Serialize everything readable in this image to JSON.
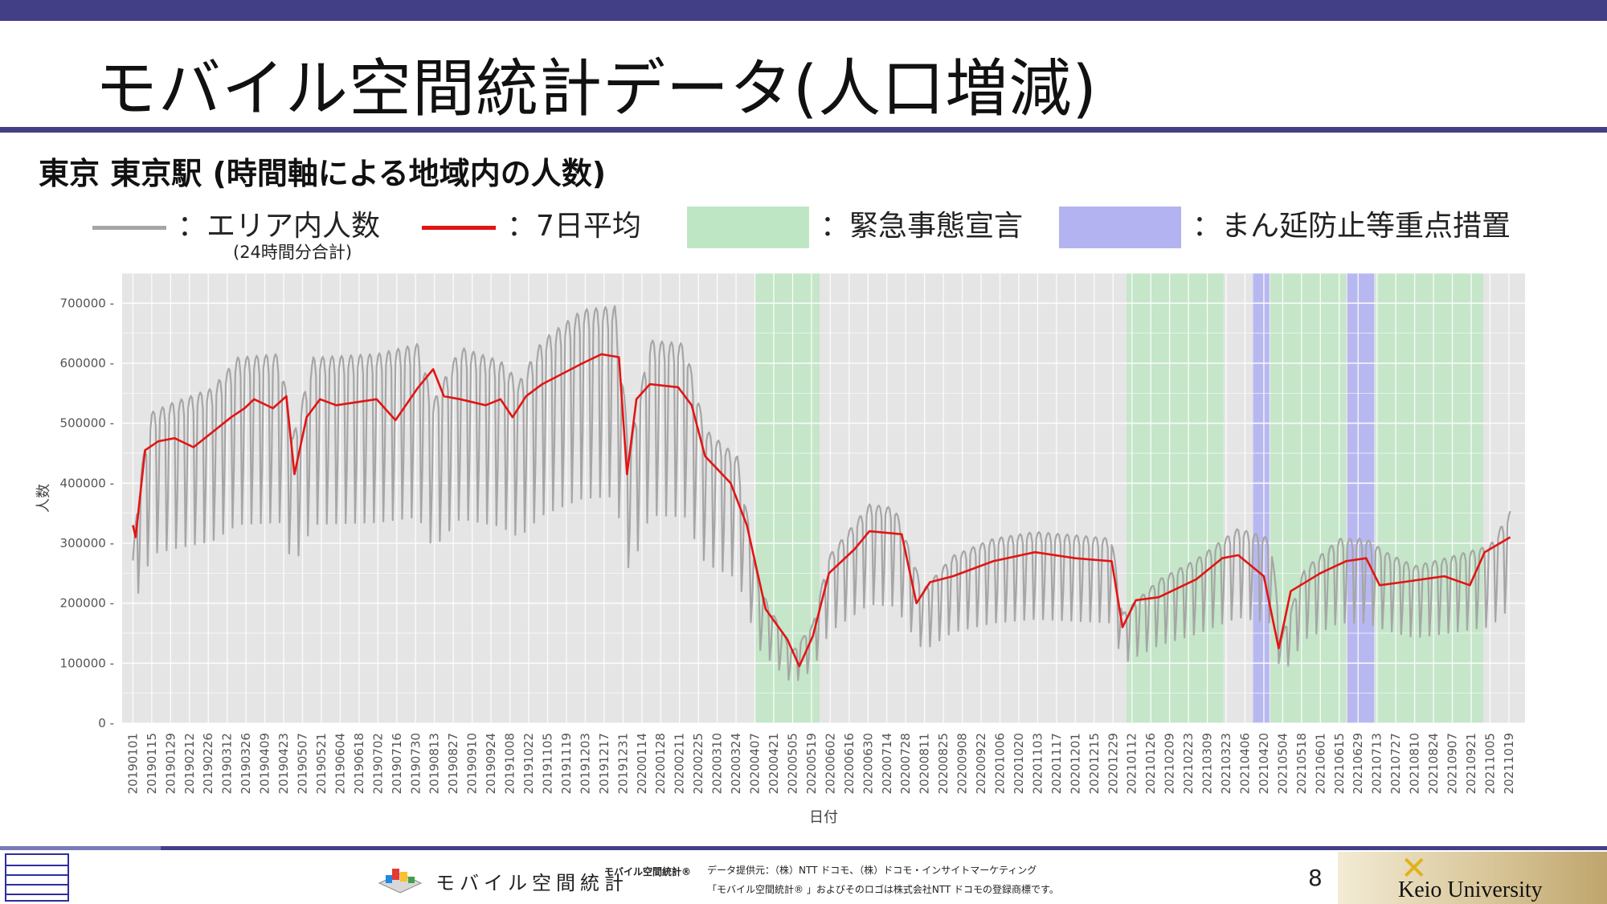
{
  "slide": {
    "title": "モバイル空間統計データ(人口増減)",
    "subtitle": "東京 東京駅 (時間軸による地域内の人数)",
    "page_number": "8"
  },
  "legend": {
    "area_label": "：エリア内人数",
    "area_sub": "(24時間分合計)",
    "avg_label": "：7日平均",
    "emergency_label": "：緊急事態宣言",
    "priority_label": "：まん延防止等重点措置"
  },
  "colors": {
    "header": "#433f86",
    "raw_series": "#a6a6a6",
    "avg_series": "#e31414",
    "emergency": "#bfe6c4",
    "priority": "#b3b3f2",
    "plot_bg": "#e5e5e5"
  },
  "footer": {
    "brand_text": "モバイル空間統計",
    "brand_tm": "モバイル空間統計®",
    "provider": "データ提供元：（株）NTT ドコモ、（株）ドコモ・インサイトマーケティング",
    "trademark": "「モバイル空間統計® 」およびそのロゴは株式会社NTT ドコモの登録商標です。",
    "university": "Keio University"
  },
  "chart_data": {
    "type": "line",
    "xlabel": "日付",
    "ylabel": "人数",
    "ylim": [
      0,
      750000
    ],
    "y_ticks": [
      "0",
      "100000",
      "200000",
      "300000",
      "400000",
      "500000",
      "600000",
      "700000"
    ],
    "x_ticks": [
      "20190101",
      "20190115",
      "20190129",
      "20190212",
      "20190226",
      "20190312",
      "20190326",
      "20190409",
      "20190423",
      "20190507",
      "20190521",
      "20190604",
      "20190618",
      "20190702",
      "20190716",
      "20190730",
      "20190813",
      "20190827",
      "20190910",
      "20190924",
      "20191008",
      "20191022",
      "20191105",
      "20191119",
      "20191203",
      "20191217",
      "20191231",
      "20200114",
      "20200128",
      "20200211",
      "20200225",
      "20200310",
      "20200324",
      "20200407",
      "20200421",
      "20200505",
      "20200519",
      "20200602",
      "20200616",
      "20200630",
      "20200714",
      "20200728",
      "20200811",
      "20200825",
      "20200908",
      "20200922",
      "20201006",
      "20201020",
      "20201103",
      "20201117",
      "20201201",
      "20201215",
      "20201229",
      "20210112",
      "20210126",
      "20210209",
      "20210223",
      "20210309",
      "20210323",
      "20210406",
      "20210420",
      "20210504",
      "20210518",
      "20210601",
      "20210615",
      "20210629",
      "20210713",
      "20210727",
      "20210810",
      "20210824",
      "20210907",
      "20210921",
      "20211005",
      "20211019"
    ],
    "grid": true,
    "emergency_periods": [
      [
        "20200407",
        "20200525"
      ],
      [
        "20210108",
        "20210321"
      ],
      [
        "20210425",
        "20210620"
      ],
      [
        "20210712",
        "20210930"
      ]
    ],
    "priority_periods": [
      [
        "20210412",
        "20210424"
      ],
      [
        "20210621",
        "20210711"
      ]
    ],
    "series": [
      {
        "name": "エリア内人数",
        "style": "weekly-cycle",
        "weekday_profile": [
          0.8,
          1.1,
          1.13,
          1.14,
          1.13,
          1.08,
          0.62
        ],
        "level_points": [
          [
            "20190101",
            240000
          ],
          [
            "20190105",
            350000
          ],
          [
            "20190115",
            455000
          ],
          [
            "20190201",
            470000
          ],
          [
            "20190301",
            490000
          ],
          [
            "20190320",
            535000
          ],
          [
            "20190420",
            540000
          ],
          [
            "20190430",
            420000
          ],
          [
            "20190515",
            535000
          ],
          [
            "20190701",
            540000
          ],
          [
            "20190801",
            555000
          ],
          [
            "20190812",
            470000
          ],
          [
            "20190901",
            550000
          ],
          [
            "20191001",
            530000
          ],
          [
            "20191015",
            500000
          ],
          [
            "20191101",
            560000
          ],
          [
            "20191201",
            605000
          ],
          [
            "20191225",
            610000
          ],
          [
            "20200105",
            400000
          ],
          [
            "20200120",
            560000
          ],
          [
            "20200215",
            555000
          ],
          [
            "20200301",
            430000
          ],
          [
            "20200325",
            390000
          ],
          [
            "20200410",
            200000
          ],
          [
            "20200505",
            105000
          ],
          [
            "20200520",
            145000
          ],
          [
            "20200601",
            245000
          ],
          [
            "20200701",
            320000
          ],
          [
            "20200720",
            315000
          ],
          [
            "20200810",
            195000
          ],
          [
            "20200901",
            245000
          ],
          [
            "20201001",
            270000
          ],
          [
            "20201101",
            280000
          ],
          [
            "20201201",
            275000
          ],
          [
            "20201228",
            270000
          ],
          [
            "20210105",
            160000
          ],
          [
            "20210201",
            210000
          ],
          [
            "20210301",
            240000
          ],
          [
            "20210401",
            285000
          ],
          [
            "20210425",
            270000
          ],
          [
            "20210503",
            125000
          ],
          [
            "20210520",
            225000
          ],
          [
            "20210615",
            270000
          ],
          [
            "20210705",
            270000
          ],
          [
            "20210720",
            250000
          ],
          [
            "20210810",
            230000
          ],
          [
            "20210830",
            240000
          ],
          [
            "20211005",
            260000
          ],
          [
            "20211020",
            310000
          ]
        ]
      },
      {
        "name": "7日平均",
        "points": [
          [
            "20190101",
            330000
          ],
          [
            "20190103",
            310000
          ],
          [
            "20190110",
            455000
          ],
          [
            "20190120",
            470000
          ],
          [
            "20190201",
            475000
          ],
          [
            "20190215",
            460000
          ],
          [
            "20190301",
            485000
          ],
          [
            "20190315",
            510000
          ],
          [
            "20190325",
            525000
          ],
          [
            "20190401",
            540000
          ],
          [
            "20190415",
            525000
          ],
          [
            "20190425",
            545000
          ],
          [
            "20190501",
            415000
          ],
          [
            "20190510",
            510000
          ],
          [
            "20190520",
            540000
          ],
          [
            "20190601",
            530000
          ],
          [
            "20190701",
            540000
          ],
          [
            "20190715",
            505000
          ],
          [
            "20190801",
            560000
          ],
          [
            "20190812",
            590000
          ],
          [
            "20190820",
            545000
          ],
          [
            "20190901",
            540000
          ],
          [
            "20190920",
            530000
          ],
          [
            "20191001",
            540000
          ],
          [
            "20191010",
            510000
          ],
          [
            "20191020",
            545000
          ],
          [
            "20191101",
            565000
          ],
          [
            "20191201",
            600000
          ],
          [
            "20191215",
            615000
          ],
          [
            "20191228",
            610000
          ],
          [
            "20200103",
            415000
          ],
          [
            "20200110",
            540000
          ],
          [
            "20200120",
            565000
          ],
          [
            "20200210",
            560000
          ],
          [
            "20200220",
            530000
          ],
          [
            "20200301",
            445000
          ],
          [
            "20200320",
            400000
          ],
          [
            "20200401",
            330000
          ],
          [
            "20200415",
            190000
          ],
          [
            "20200501",
            140000
          ],
          [
            "20200510",
            95000
          ],
          [
            "20200520",
            145000
          ],
          [
            "20200601",
            250000
          ],
          [
            "20200620",
            290000
          ],
          [
            "20200701",
            320000
          ],
          [
            "20200725",
            315000
          ],
          [
            "20200805",
            200000
          ],
          [
            "20200815",
            235000
          ],
          [
            "20200901",
            245000
          ],
          [
            "20201001",
            270000
          ],
          [
            "20201101",
            285000
          ],
          [
            "20201201",
            275000
          ],
          [
            "20201228",
            270000
          ],
          [
            "20210105",
            160000
          ],
          [
            "20210115",
            205000
          ],
          [
            "20210201",
            210000
          ],
          [
            "20210301",
            240000
          ],
          [
            "20210320",
            275000
          ],
          [
            "20210401",
            280000
          ],
          [
            "20210420",
            245000
          ],
          [
            "20210501",
            125000
          ],
          [
            "20210510",
            220000
          ],
          [
            "20210601",
            250000
          ],
          [
            "20210620",
            270000
          ],
          [
            "20210705",
            275000
          ],
          [
            "20210715",
            230000
          ],
          [
            "20210801",
            235000
          ],
          [
            "20210901",
            245000
          ],
          [
            "20210920",
            230000
          ],
          [
            "20211001",
            285000
          ],
          [
            "20211020",
            310000
          ]
        ]
      }
    ]
  }
}
